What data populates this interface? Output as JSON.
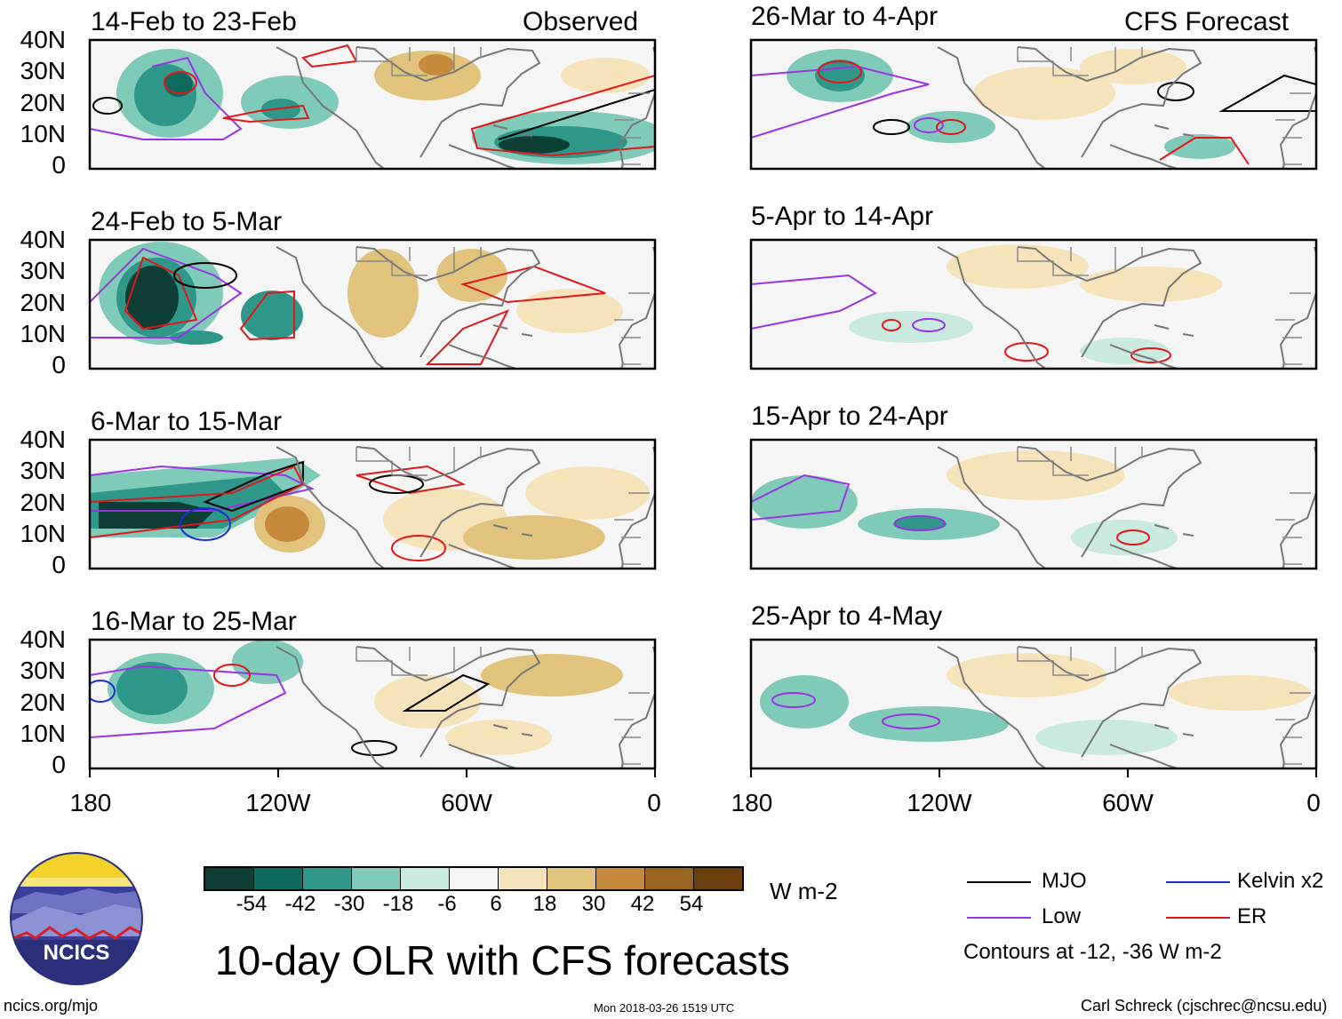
{
  "panels": {
    "observed_header": "Observed",
    "forecast_header": "CFS Forecast",
    "left": [
      {
        "title": "14-Feb to 23-Feb"
      },
      {
        "title": "24-Feb to 5-Mar"
      },
      {
        "title": "6-Mar to 15-Mar"
      },
      {
        "title": "16-Mar to 25-Mar"
      }
    ],
    "right": [
      {
        "title": "26-Mar to 4-Apr"
      },
      {
        "title": "5-Apr to 14-Apr"
      },
      {
        "title": "15-Apr to 24-Apr"
      },
      {
        "title": "25-Apr to 4-May"
      }
    ]
  },
  "axes": {
    "y_ticks": [
      "40N",
      "30N",
      "20N",
      "10N",
      "0"
    ],
    "x_ticks": [
      "180",
      "120W",
      "60W",
      "0"
    ]
  },
  "colorbar": {
    "tick_labels": [
      "-54",
      "-42",
      "-30",
      "-18",
      "-6",
      "6",
      "18",
      "30",
      "42",
      "54"
    ],
    "unit": "W m-2",
    "colors": [
      "#0d3f36",
      "#0f6a5e",
      "#2f978a",
      "#7fcab9",
      "#c8eadf",
      "#f5f5f5",
      "#f6e3b9",
      "#e2c37e",
      "#c58a3b",
      "#9a6422",
      "#6b3f10"
    ]
  },
  "main_title": "10-day OLR with CFS forecasts",
  "legend": {
    "items": [
      {
        "label": "MJO",
        "color": "#000000"
      },
      {
        "label": "Kelvin x2",
        "color": "#1a2fd6"
      },
      {
        "label": "Low",
        "color": "#9a33e6"
      },
      {
        "label": "ER",
        "color": "#e0161b"
      }
    ],
    "contours_note": "Contours at -12, -36 W m-2"
  },
  "logo": {
    "text": "NCICS"
  },
  "footer": {
    "left": "ncics.org/mjo",
    "center": "Mon 2018-03-26 1519 UTC",
    "right": "Carl Schreck (cjschrec@ncsu.edu)"
  }
}
